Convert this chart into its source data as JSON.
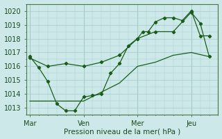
{
  "bg_color": "#cce8e8",
  "grid_color": "#aacfcf",
  "line_color": "#1a5c1a",
  "xlabel": "Pression niveau de la mer( hPa )",
  "ylim": [
    1012.5,
    1020.5
  ],
  "yticks": [
    1013,
    1014,
    1015,
    1016,
    1017,
    1018,
    1019,
    1020
  ],
  "xtick_labels": [
    "Mar",
    "Ven",
    "Mer",
    "Jeu"
  ],
  "xtick_positions": [
    0,
    30,
    60,
    90
  ],
  "vline_positions": [
    0,
    30,
    60,
    90
  ],
  "xlim": [
    -2,
    105
  ],
  "series1_x": [
    0,
    5,
    10,
    15,
    20,
    25,
    30,
    35,
    40,
    45,
    50,
    55,
    60,
    63,
    66,
    70,
    75,
    80,
    85,
    90,
    95,
    100
  ],
  "series1_y": [
    1016.7,
    1015.9,
    1014.9,
    1013.3,
    1012.8,
    1012.8,
    1013.8,
    1013.9,
    1014.0,
    1015.5,
    1016.2,
    1017.5,
    1018.0,
    1018.5,
    1018.5,
    1019.2,
    1019.5,
    1019.5,
    1019.3,
    1020.0,
    1018.2,
    1018.2
  ],
  "series2_x": [
    0,
    10,
    20,
    30,
    40,
    50,
    60,
    70,
    80,
    90,
    95,
    100
  ],
  "series2_y": [
    1016.6,
    1016.0,
    1016.2,
    1016.0,
    1016.3,
    1016.8,
    1018.0,
    1018.5,
    1018.5,
    1019.9,
    1019.1,
    1016.7
  ],
  "series3_x": [
    0,
    30,
    50,
    60,
    70,
    80,
    90,
    100
  ],
  "series3_y": [
    1013.5,
    1013.5,
    1014.8,
    1016.0,
    1016.3,
    1016.8,
    1017.0,
    1016.7
  ]
}
